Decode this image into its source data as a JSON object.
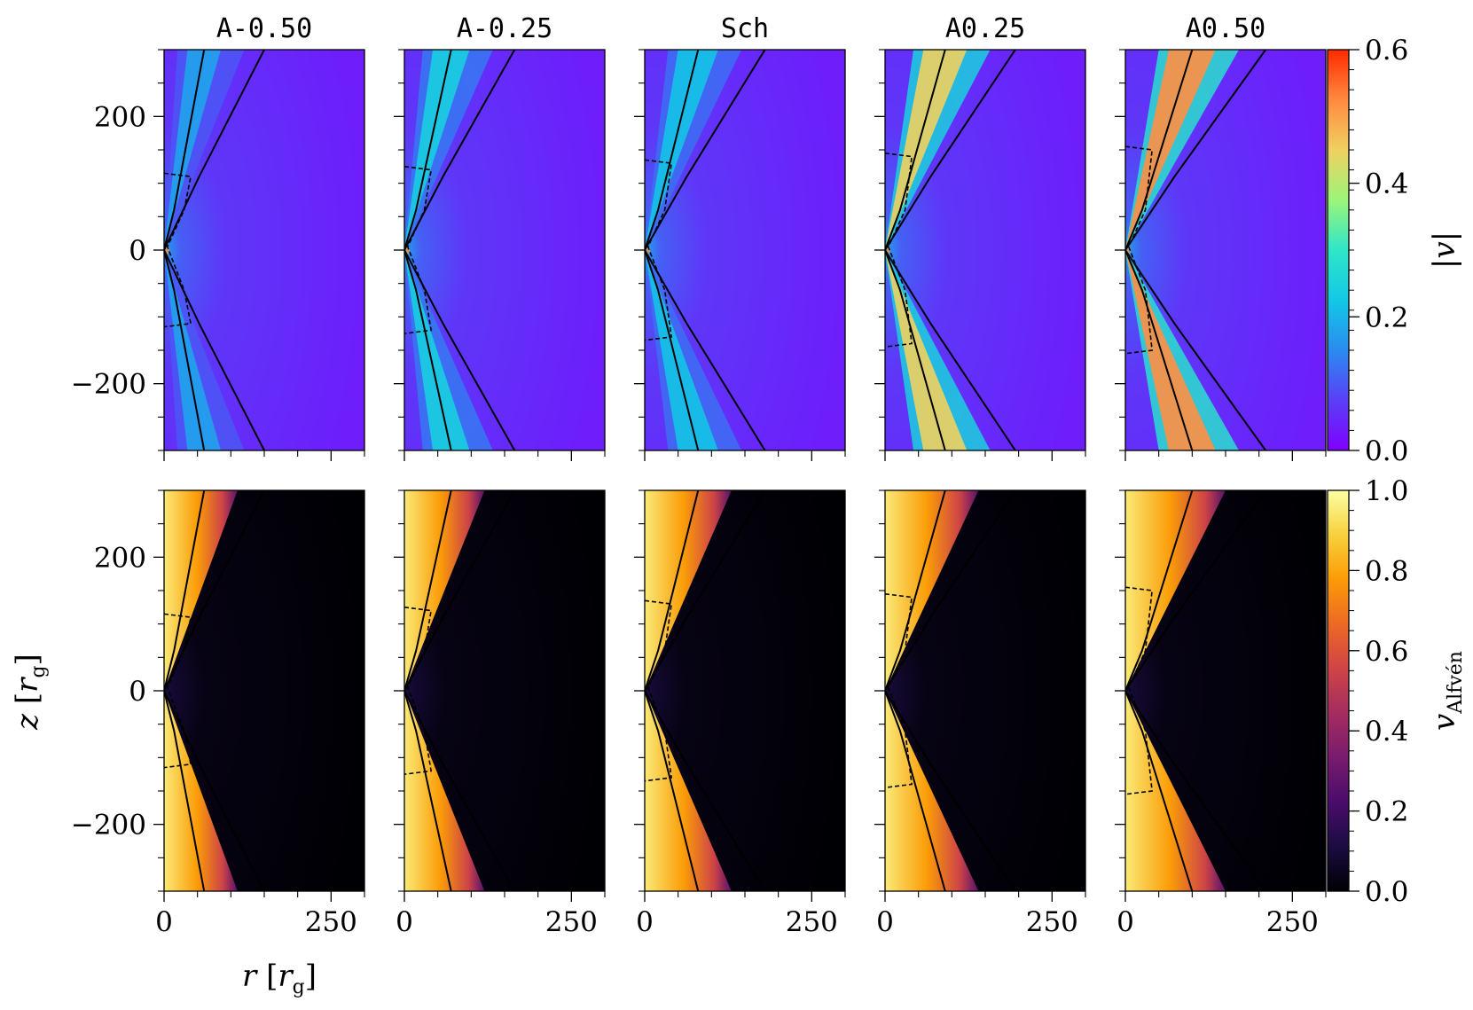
{
  "chart_data": {
    "type": "heatmap",
    "panels": [
      "A-0.50",
      "A-0.25",
      "Sch",
      "A0.25",
      "A0.50"
    ],
    "rows": [
      {
        "quantity": "|v|",
        "colormap": "rainbow",
        "clim": [
          0.0,
          0.6
        ],
        "colorbar_ticks": [
          "0.0",
          "0.2",
          "0.4",
          "0.6"
        ],
        "colorbar_label": "|v|"
      },
      {
        "quantity": "v_Alfven",
        "colormap": "inferno",
        "clim": [
          0.0,
          1.0
        ],
        "colorbar_ticks": [
          "0.0",
          "0.2",
          "0.4",
          "0.6",
          "0.8",
          "1.0"
        ],
        "colorbar_label_main": "v",
        "colorbar_label_sub": "Alfvén"
      }
    ],
    "xlim": [
      0,
      300
    ],
    "ylim": [
      -300,
      300
    ],
    "x_ticks": [
      "0",
      "250"
    ],
    "y_ticks": [
      "200",
      "0",
      "−200"
    ],
    "xlabel": {
      "var": "r",
      "unit_open": "[",
      "unit_var": "r",
      "unit_sub": "g",
      "unit_close": "]"
    },
    "ylabel": {
      "var": "z",
      "unit_open": "[",
      "unit_var": "r",
      "unit_sub": "g",
      "unit_close": "]"
    },
    "jet_peak_velocity": [
      0.18,
      0.24,
      0.22,
      0.45,
      0.52
    ]
  },
  "colors": {
    "rainbow": [
      "#7f00ff",
      "#5a3ff7",
      "#2b8bf0",
      "#12c8e6",
      "#2fe6c8",
      "#9bf57a",
      "#f0d060",
      "#ff8a40",
      "#ff2a00"
    ],
    "inferno": [
      "#000004",
      "#1b0c41",
      "#4a0c6b",
      "#781c6d",
      "#a52c60",
      "#cf4446",
      "#ed6925",
      "#fb9b06",
      "#f7d13d",
      "#fcffa4"
    ],
    "line": "#000000"
  }
}
